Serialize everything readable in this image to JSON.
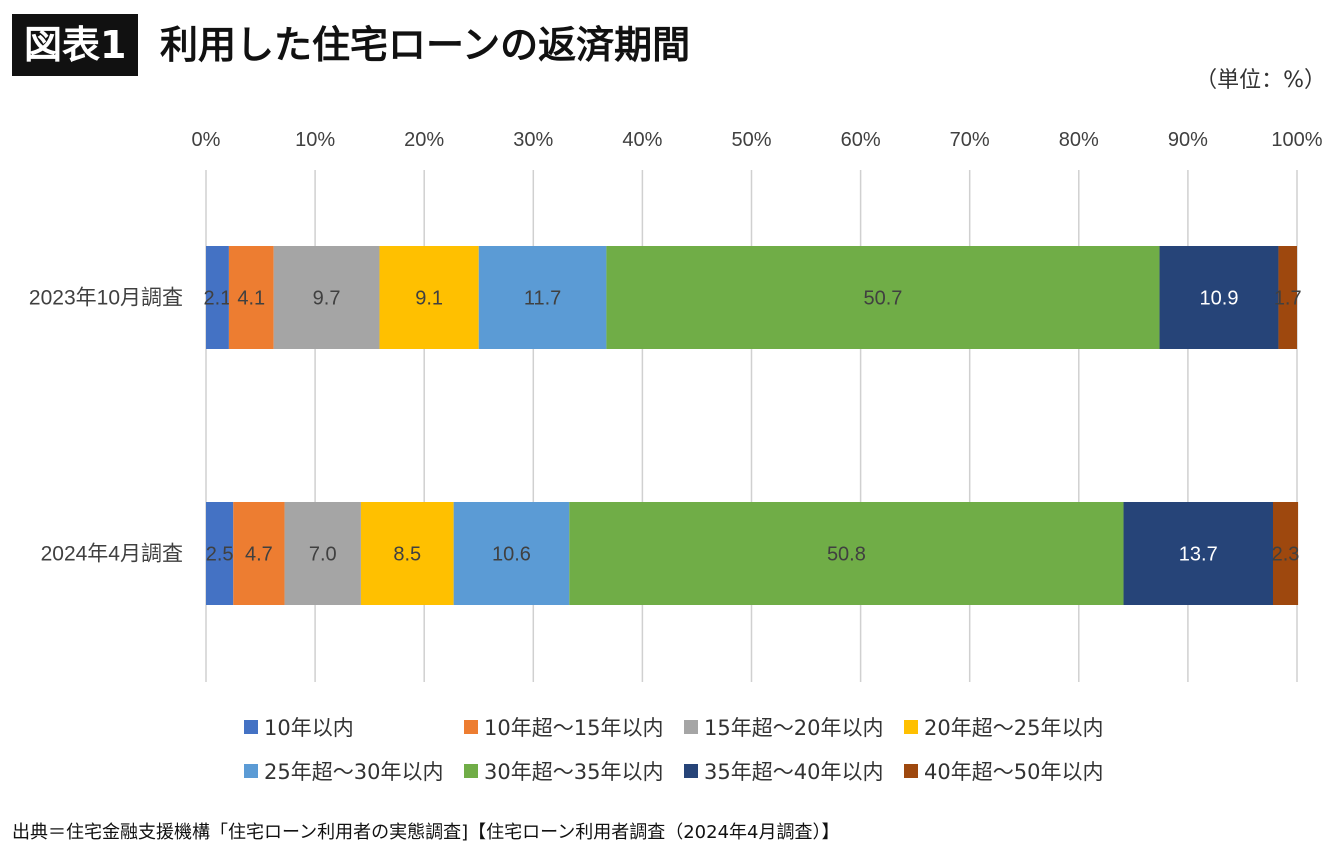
{
  "header": {
    "figure_label": "図表1",
    "title": "利用した住宅ローンの返済期間",
    "unit": "（単位：%）"
  },
  "source": "出典＝住宅金融支援機構「住宅ローン利用者の実態調査]【住宅ローン利用者調査（2024年4月調査）】",
  "chart_data": {
    "type": "bar",
    "orientation": "horizontal",
    "stacked": "percent",
    "categories": [
      "2023年10月調査",
      "2024年4月調査"
    ],
    "xlim": [
      0,
      100
    ],
    "x_ticks": [
      "0%",
      "10%",
      "20%",
      "30%",
      "40%",
      "50%",
      "60%",
      "70%",
      "80%",
      "90%",
      "100%"
    ],
    "grid": "vertical",
    "legend_position": "bottom",
    "series": [
      {
        "name": "10年以内",
        "values": [
          2.1,
          2.5
        ],
        "color": "#4472C4",
        "label_color": "#404040"
      },
      {
        "name": "10年超～15年以内",
        "values": [
          4.1,
          4.7
        ],
        "color": "#ED7D31",
        "label_color": "#404040"
      },
      {
        "name": "15年超～20年以内",
        "values": [
          9.7,
          7.0
        ],
        "color": "#A5A5A5",
        "label_color": "#404040"
      },
      {
        "name": "20年超～25年以内",
        "values": [
          9.1,
          8.5
        ],
        "color": "#FFC000",
        "label_color": "#404040"
      },
      {
        "name": "25年超～30年以内",
        "values": [
          11.7,
          10.6
        ],
        "color": "#5B9BD5",
        "label_color": "#404040"
      },
      {
        "name": "30年超～35年以内",
        "values": [
          50.7,
          50.8
        ],
        "color": "#70AD47",
        "label_color": "#404040"
      },
      {
        "name": "35年超～40年以内",
        "values": [
          10.9,
          13.7
        ],
        "color": "#264478",
        "label_color": "#ffffff"
      },
      {
        "name": "40年超～50年以内",
        "values": [
          1.7,
          2.3
        ],
        "color": "#9E480E",
        "label_color": "#404040"
      }
    ]
  }
}
